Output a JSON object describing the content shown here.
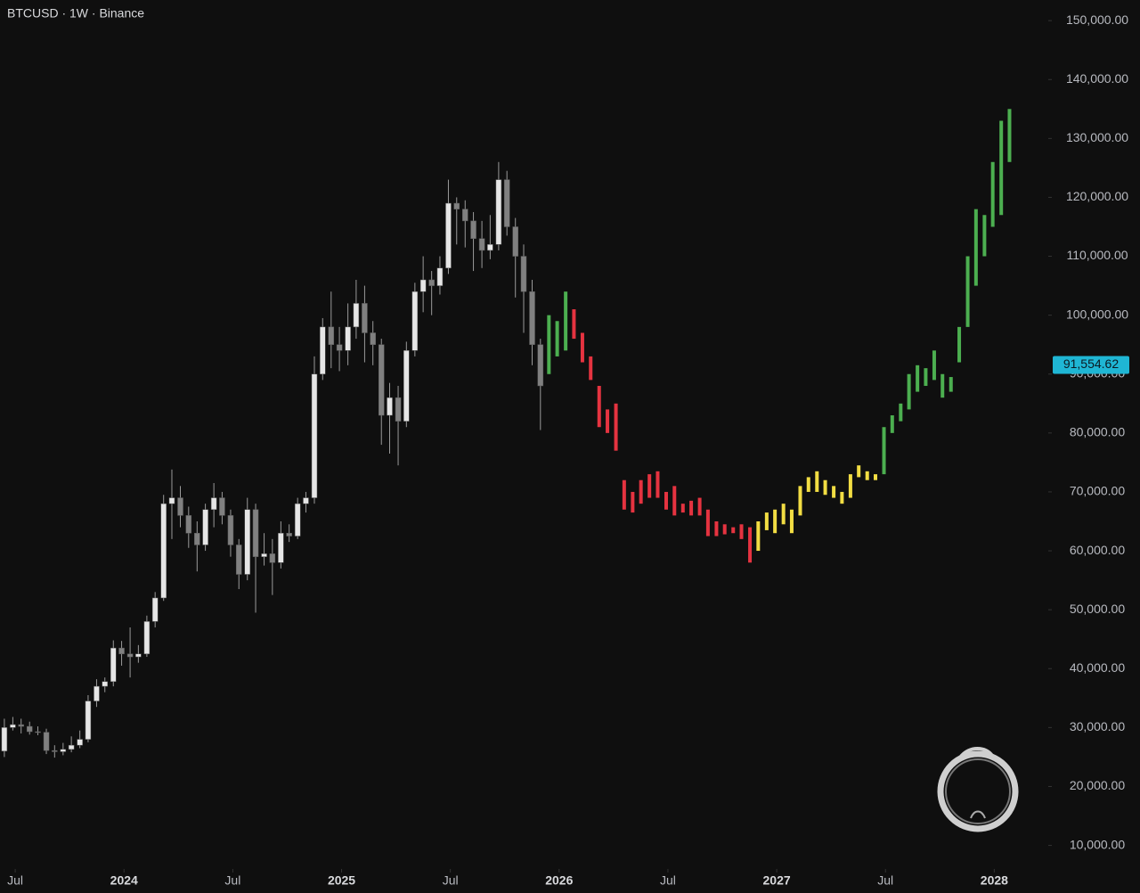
{
  "chart_data": {
    "type": "candlestick",
    "title": "BTCUSD · 1W · Binance",
    "xlim": [
      2023.43,
      2028.24
    ],
    "ylim": [
      6000,
      153500
    ],
    "xticks": [
      {
        "value": 2023.5,
        "label": "Jul"
      },
      {
        "value": 2024.0,
        "label": "2024"
      },
      {
        "value": 2024.5,
        "label": "Jul"
      },
      {
        "value": 2025.0,
        "label": "2025"
      },
      {
        "value": 2025.5,
        "label": "Jul"
      },
      {
        "value": 2026.0,
        "label": "2026"
      },
      {
        "value": 2026.5,
        "label": "Jul"
      },
      {
        "value": 2027.0,
        "label": "2027"
      },
      {
        "value": 2027.5,
        "label": "Jul"
      },
      {
        "value": 2028.0,
        "label": "2028"
      }
    ],
    "yticks": [
      {
        "value": 150000,
        "label": "150,000.00"
      },
      {
        "value": 140000,
        "label": "140,000.00"
      },
      {
        "value": 130000,
        "label": "130,000.00"
      },
      {
        "value": 120000,
        "label": "120,000.00"
      },
      {
        "value": 110000,
        "label": "110,000.00"
      },
      {
        "value": 100000,
        "label": "100,000.00"
      },
      {
        "value": 90000,
        "label": "90,000.00"
      },
      {
        "value": 80000,
        "label": "80,000.00"
      },
      {
        "value": 70000,
        "label": "70,000.00"
      },
      {
        "value": 60000,
        "label": "60,000.00"
      },
      {
        "value": 50000,
        "label": "50,000.00"
      },
      {
        "value": 40000,
        "label": "40,000.00"
      },
      {
        "value": 30000,
        "label": "30,000.00"
      },
      {
        "value": 20000,
        "label": "20,000.00"
      },
      {
        "value": 10000,
        "label": "10,000.00"
      }
    ],
    "last_price": {
      "value": 91554.62,
      "label": "91,554.62",
      "color": "#1fb6d4"
    },
    "candles": {
      "up_color": "#e6e6e6",
      "down_color": "#808080",
      "wick_color": "#9a9a9a",
      "x": [
        2023.45,
        2023.489,
        2023.527,
        2023.566,
        2023.604,
        2023.643,
        2023.681,
        2023.72,
        2023.758,
        2023.797,
        2023.835,
        2023.874,
        2023.912,
        2023.951,
        2023.989,
        2024.028,
        2024.066,
        2024.105,
        2024.143,
        2024.182,
        2024.22,
        2024.259,
        2024.297,
        2024.336,
        2024.374,
        2024.413,
        2024.451,
        2024.49,
        2024.528,
        2024.567,
        2024.605,
        2024.644,
        2024.682,
        2024.721,
        2024.759,
        2024.798,
        2024.836,
        2024.875,
        2024.913,
        2024.952,
        2024.99,
        2025.029,
        2025.067,
        2025.106,
        2025.144,
        2025.183,
        2025.221,
        2025.26,
        2025.298,
        2025.337,
        2025.375,
        2025.414,
        2025.452,
        2025.491,
        2025.529,
        2025.568,
        2025.606,
        2025.645,
        2025.683,
        2025.722,
        2025.76,
        2025.799,
        2025.837,
        2025.876,
        2025.914
      ],
      "open": [
        26000,
        30000,
        30500,
        30200,
        29300,
        29200,
        26100,
        25900,
        26300,
        27000,
        28000,
        34500,
        37000,
        37800,
        43500,
        42500,
        42000,
        42500,
        48000,
        52000,
        68000,
        69000,
        66000,
        63000,
        61000,
        67000,
        69000,
        66000,
        61000,
        56000,
        67000,
        59000,
        59500,
        58000,
        63000,
        62500,
        68000,
        69000,
        90000,
        98000,
        95000,
        94000,
        98000,
        102000,
        97000,
        95000,
        83000,
        86000,
        82000,
        94000,
        104000,
        106000,
        105000,
        108000,
        119000,
        118000,
        116000,
        113000,
        111000,
        112000,
        123000,
        115000,
        110000,
        104000,
        95000
      ],
      "high": [
        31500,
        31800,
        31500,
        31000,
        30200,
        29800,
        27000,
        27400,
        28500,
        29500,
        35500,
        38200,
        38500,
        44800,
        44700,
        47000,
        44000,
        49000,
        53000,
        69500,
        73800,
        71000,
        67500,
        65000,
        68000,
        71500,
        70000,
        67000,
        62000,
        69000,
        68000,
        63000,
        62000,
        65000,
        64500,
        69000,
        70000,
        93000,
        99500,
        104000,
        98000,
        102000,
        106000,
        105000,
        99000,
        96000,
        88500,
        88000,
        95500,
        105500,
        110000,
        107500,
        110000,
        123000,
        120000,
        119500,
        117500,
        116000,
        117000,
        126000,
        124500,
        116500,
        112000,
        106000,
        96000
      ],
      "low": [
        25000,
        29500,
        29000,
        28800,
        28700,
        25500,
        24900,
        25300,
        25800,
        26500,
        27500,
        33500,
        36000,
        37000,
        40500,
        38500,
        41000,
        42000,
        47000,
        51500,
        62000,
        64000,
        60500,
        56500,
        60000,
        64000,
        64500,
        59000,
        53500,
        55000,
        49500,
        57500,
        52500,
        57000,
        61500,
        62000,
        66500,
        68000,
        89000,
        91000,
        90500,
        91500,
        96000,
        92000,
        91500,
        78000,
        76500,
        74500,
        81000,
        93000,
        100500,
        100000,
        103500,
        107000,
        112000,
        111500,
        107500,
        108000,
        109500,
        111000,
        113500,
        103000,
        97000,
        91500,
        80500
      ],
      "close": [
        30000,
        30500,
        30200,
        29300,
        29200,
        26100,
        25900,
        26300,
        27000,
        28000,
        34500,
        37000,
        37800,
        43500,
        42500,
        42000,
        42500,
        48000,
        52000,
        68000,
        69000,
        66000,
        63000,
        61000,
        67000,
        69000,
        66000,
        61000,
        56000,
        67000,
        59000,
        59500,
        58000,
        63000,
        62500,
        68000,
        69000,
        90000,
        98000,
        95000,
        94000,
        98000,
        102000,
        97000,
        95000,
        83000,
        86000,
        82000,
        94000,
        104000,
        106000,
        105000,
        108000,
        119000,
        118000,
        116000,
        113000,
        111000,
        112000,
        123000,
        115000,
        110000,
        104000,
        95000,
        88000
      ]
    },
    "projection": [
      {
        "color": "#4caf50",
        "x": [
          2025.953,
          2025.991,
          2026.03
        ],
        "open": [
          90000,
          99000,
          94000
        ],
        "close": [
          100000,
          93000,
          104000
        ]
      },
      {
        "color": "#e53340",
        "x": [
          2026.068,
          2026.107,
          2026.145,
          2026.184,
          2026.222,
          2026.261,
          2026.299,
          2026.338,
          2026.376,
          2026.415,
          2026.453,
          2026.492,
          2026.53,
          2026.569,
          2026.607,
          2026.646,
          2026.684,
          2026.723,
          2026.761,
          2026.8,
          2026.838,
          2026.877
        ],
        "open": [
          101000,
          97000,
          93000,
          88000,
          84000,
          85000,
          72000,
          70000,
          72000,
          69000,
          73500,
          70000,
          71000,
          68000,
          68500,
          69000,
          67000,
          65000,
          64500,
          64000,
          64500,
          64000
        ],
        "close": [
          96000,
          92000,
          89000,
          81000,
          80000,
          77000,
          67000,
          66500,
          68000,
          73000,
          69000,
          67000,
          66000,
          66500,
          66000,
          66000,
          62500,
          62500,
          62800,
          63000,
          62000,
          58000
        ]
      },
      {
        "color": "#f2dd43",
        "x": [
          2026.915,
          2026.954,
          2026.992,
          2027.031,
          2027.069,
          2027.108,
          2027.146,
          2027.185,
          2027.223,
          2027.262,
          2027.3,
          2027.339,
          2027.377,
          2027.416,
          2027.454
        ],
        "open": [
          60000,
          63500,
          67000,
          64500,
          67000,
          66000,
          70000,
          73500,
          72000,
          71000,
          70000,
          69000,
          74500,
          73500,
          72000
        ],
        "close": [
          65000,
          66500,
          63000,
          68000,
          63000,
          71000,
          72500,
          70000,
          69500,
          69000,
          68000,
          73000,
          72500,
          72000,
          73000
        ]
      },
      {
        "color": "#4caf50",
        "x": [
          2027.493,
          2027.531,
          2027.57,
          2027.608,
          2027.647,
          2027.685,
          2027.724,
          2027.762,
          2027.801,
          2027.839,
          2027.878,
          2027.916,
          2027.955,
          2027.993,
          2028.032,
          2028.07
        ],
        "open": [
          73000,
          80000,
          82000,
          84000,
          87000,
          88000,
          89000,
          90000,
          87000,
          92000,
          98000,
          105000,
          110000,
          115000,
          117000,
          126000
        ],
        "close": [
          81000,
          83000,
          85000,
          90000,
          91500,
          91000,
          94000,
          86000,
          89500,
          98000,
          110000,
          118000,
          117000,
          126000,
          133000,
          135000
        ]
      }
    ]
  }
}
